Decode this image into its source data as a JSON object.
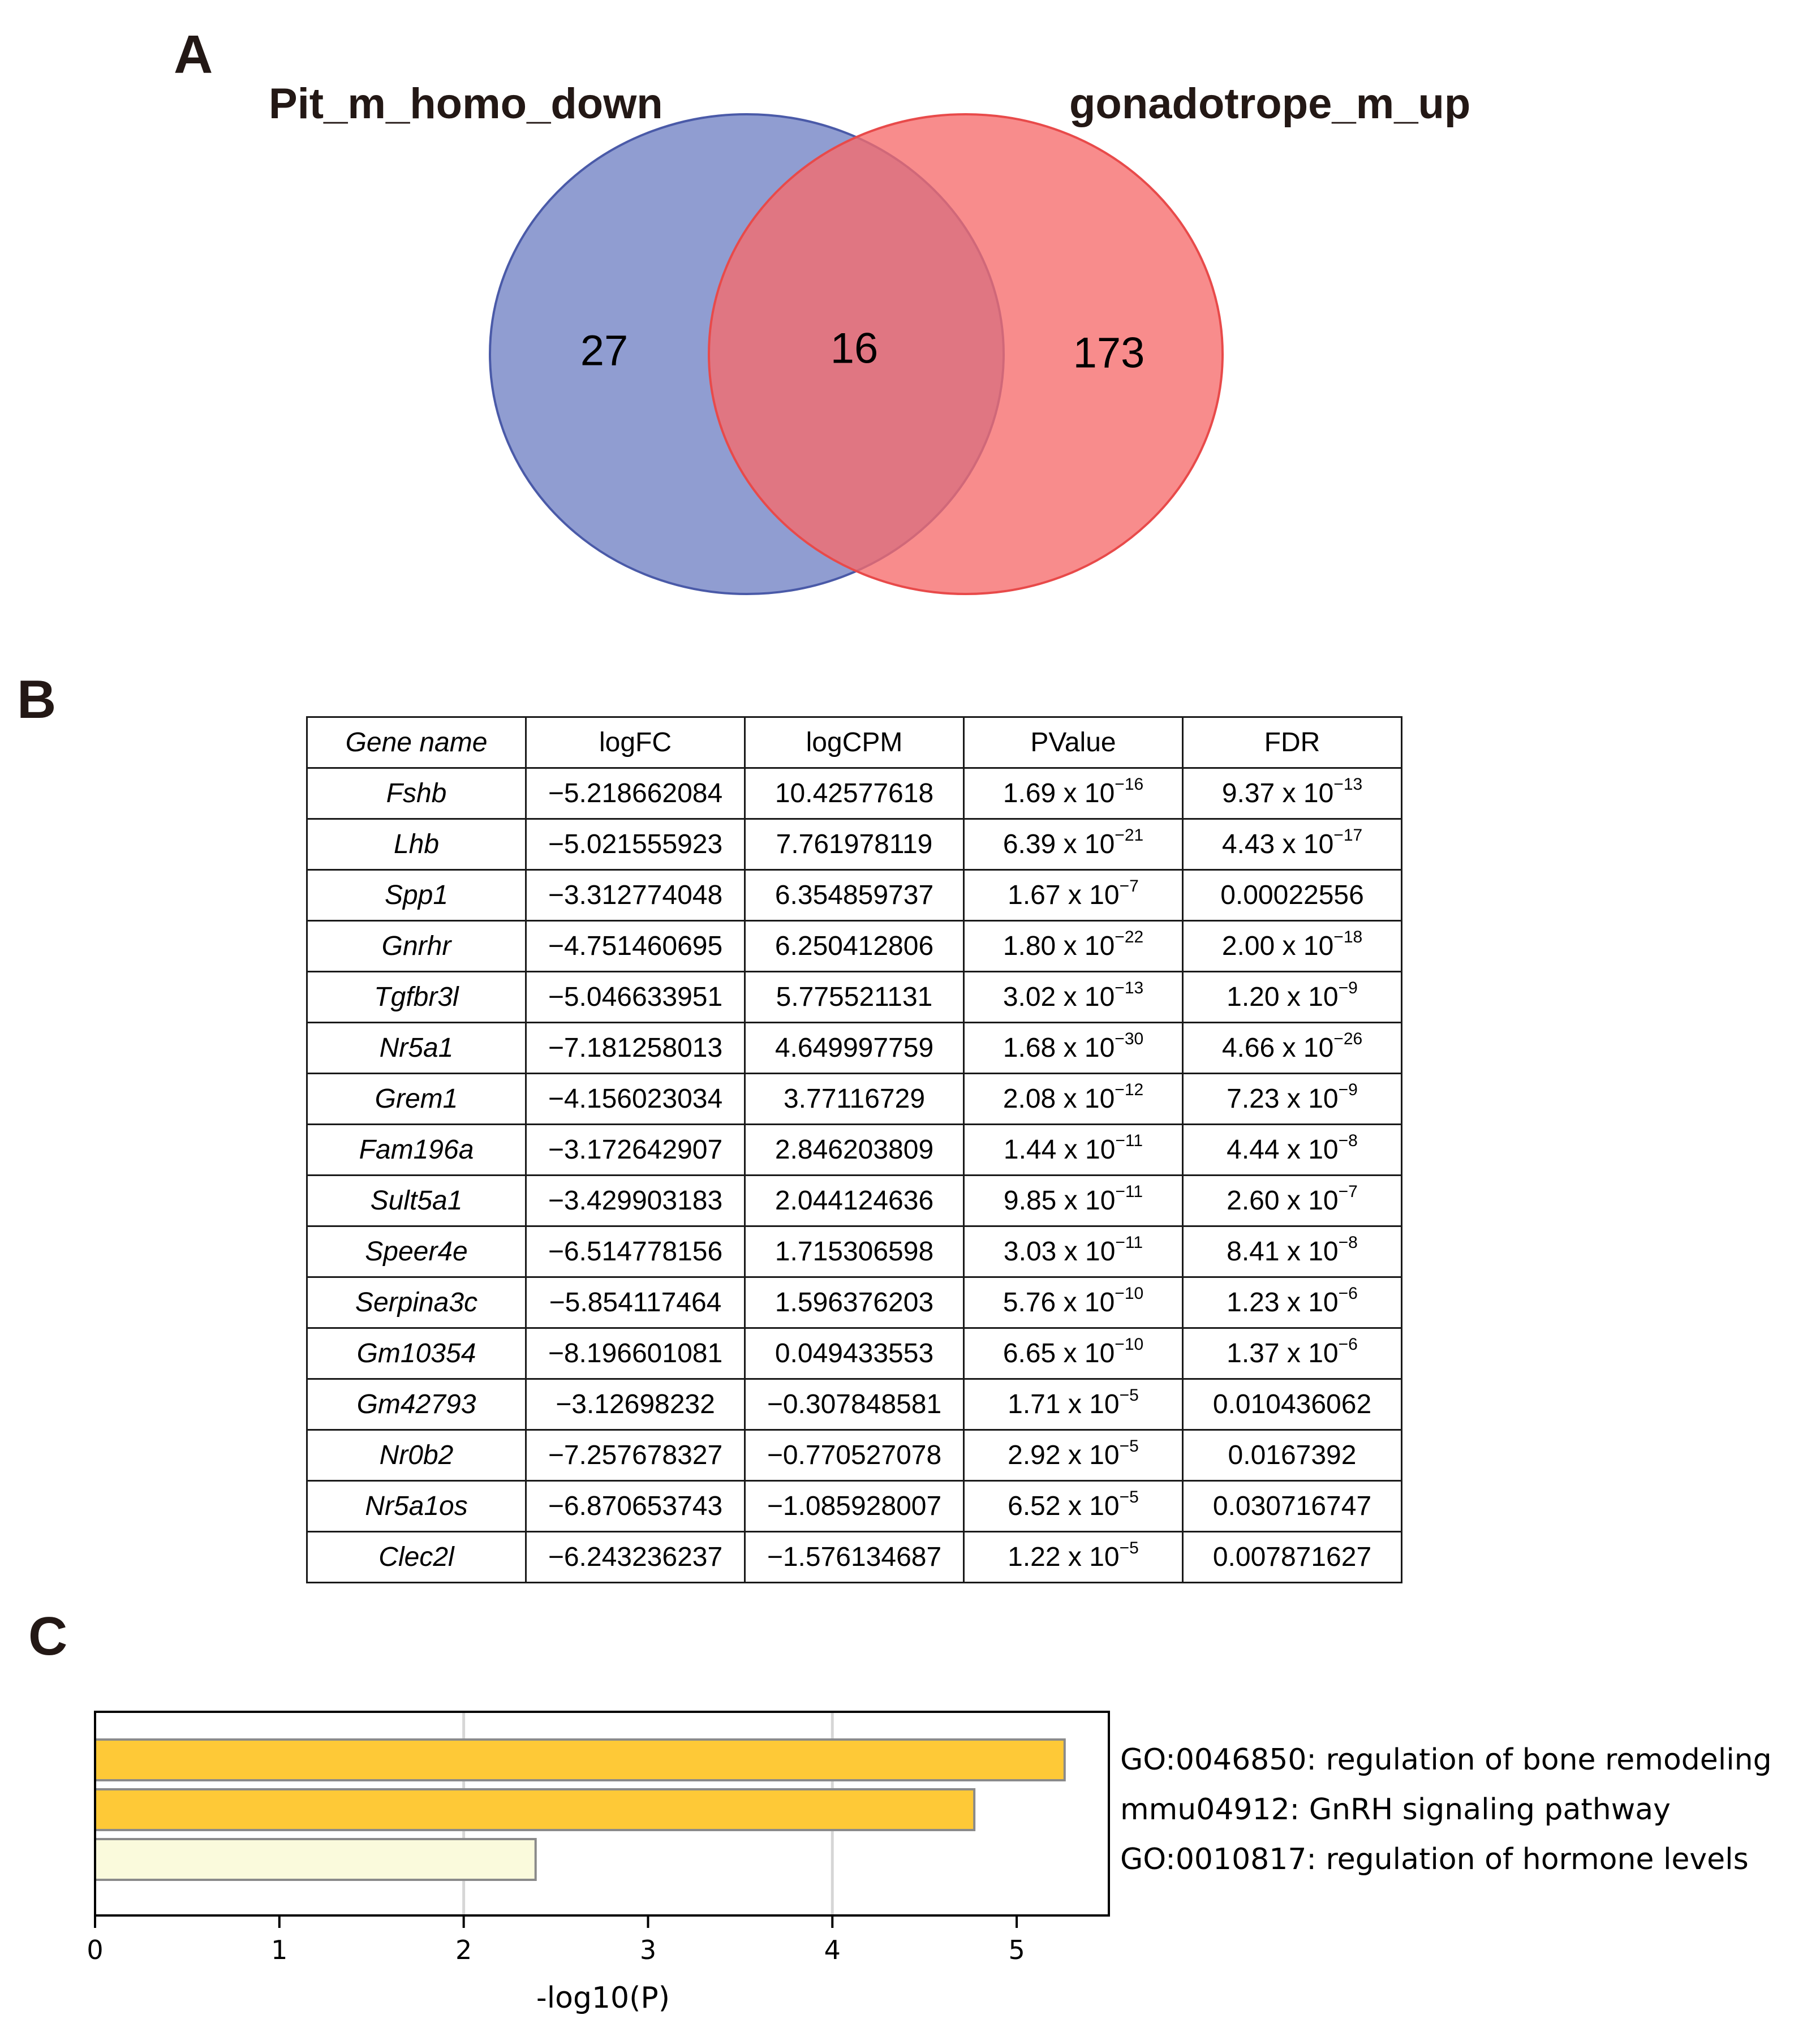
{
  "panels": {
    "a": "A",
    "b": "B",
    "c": "C"
  },
  "venn": {
    "left_title": "Pit_m_homo_down",
    "right_title": "gonadotrope_m_up",
    "left_only": "27",
    "overlap": "16",
    "right_only": "173",
    "left_color": "#7181c4",
    "right_color": "#f66b6b"
  },
  "table": {
    "headers": [
      "Gene name",
      "logFC",
      "logCPM",
      "PValue",
      "FDR"
    ],
    "rows": [
      {
        "gene": "Fshb",
        "logFC": "−5.218662084",
        "logCPM": "10.42577618",
        "p_mant": "1.69",
        "p_exp": "−16",
        "fdr_mant": "9.37",
        "fdr_exp": "−13",
        "fdr_plain": ""
      },
      {
        "gene": "Lhb",
        "logFC": "−5.021555923",
        "logCPM": "7.761978119",
        "p_mant": "6.39",
        "p_exp": "−21",
        "fdr_mant": "4.43",
        "fdr_exp": "−17",
        "fdr_plain": ""
      },
      {
        "gene": "Spp1",
        "logFC": "−3.312774048",
        "logCPM": "6.354859737",
        "p_mant": "1.67",
        "p_exp": "−7",
        "fdr_mant": "",
        "fdr_exp": "",
        "fdr_plain": "0.00022556"
      },
      {
        "gene": "Gnrhr",
        "logFC": "−4.751460695",
        "logCPM": "6.250412806",
        "p_mant": "1.80",
        "p_exp": "−22",
        "fdr_mant": "2.00",
        "fdr_exp": "−18",
        "fdr_plain": ""
      },
      {
        "gene": "Tgfbr3l",
        "logFC": "−5.046633951",
        "logCPM": "5.775521131",
        "p_mant": "3.02",
        "p_exp": "−13",
        "fdr_mant": "1.20",
        "fdr_exp": "−9",
        "fdr_plain": ""
      },
      {
        "gene": "Nr5a1",
        "logFC": "−7.181258013",
        "logCPM": "4.649997759",
        "p_mant": "1.68",
        "p_exp": "−30",
        "fdr_mant": "4.66",
        "fdr_exp": "−26",
        "fdr_plain": ""
      },
      {
        "gene": "Grem1",
        "logFC": "−4.156023034",
        "logCPM": "3.77116729",
        "p_mant": "2.08",
        "p_exp": "−12",
        "fdr_mant": "7.23",
        "fdr_exp": "−9",
        "fdr_plain": ""
      },
      {
        "gene": "Fam196a",
        "logFC": "−3.172642907",
        "logCPM": "2.846203809",
        "p_mant": "1.44",
        "p_exp": "−11",
        "fdr_mant": "4.44",
        "fdr_exp": "−8",
        "fdr_plain": ""
      },
      {
        "gene": "Sult5a1",
        "logFC": "−3.429903183",
        "logCPM": "2.044124636",
        "p_mant": "9.85",
        "p_exp": "−11",
        "fdr_mant": "2.60",
        "fdr_exp": "−7",
        "fdr_plain": ""
      },
      {
        "gene": "Speer4e",
        "logFC": "−6.514778156",
        "logCPM": "1.715306598",
        "p_mant": "3.03",
        "p_exp": "−11",
        "fdr_mant": "8.41",
        "fdr_exp": "−8",
        "fdr_plain": ""
      },
      {
        "gene": "Serpina3c",
        "logFC": "−5.854117464",
        "logCPM": "1.596376203",
        "p_mant": "5.76",
        "p_exp": "−10",
        "fdr_mant": "1.23",
        "fdr_exp": "−6",
        "fdr_plain": ""
      },
      {
        "gene": "Gm10354",
        "logFC": "−8.196601081",
        "logCPM": "0.049433553",
        "p_mant": "6.65",
        "p_exp": "−10",
        "fdr_mant": "1.37",
        "fdr_exp": "−6",
        "fdr_plain": ""
      },
      {
        "gene": "Gm42793",
        "logFC": "−3.12698232",
        "logCPM": "−0.307848581",
        "p_mant": "1.71",
        "p_exp": "−5",
        "fdr_mant": "",
        "fdr_exp": "",
        "fdr_plain": "0.010436062"
      },
      {
        "gene": "Nr0b2",
        "logFC": "−7.257678327",
        "logCPM": "−0.770527078",
        "p_mant": "2.92",
        "p_exp": "−5",
        "fdr_mant": "",
        "fdr_exp": "",
        "fdr_plain": "0.0167392"
      },
      {
        "gene": "Nr5a1os",
        "logFC": "−6.870653743",
        "logCPM": "−1.085928007",
        "p_mant": "6.52",
        "p_exp": "−5",
        "fdr_mant": "",
        "fdr_exp": "",
        "fdr_plain": "0.030716747"
      },
      {
        "gene": "Clec2l",
        "logFC": "−6.243236237",
        "logCPM": "−1.576134687",
        "p_mant": "1.22",
        "p_exp": "−5",
        "fdr_mant": "",
        "fdr_exp": "",
        "fdr_plain": "0.007871627"
      }
    ]
  },
  "chart_data": {
    "type": "bar",
    "orientation": "horizontal",
    "categories": [
      "GO:0046850: regulation of bone remodeling",
      "mmu04912: GnRH signaling pathway",
      "GO:0010817: regulation of hormone levels"
    ],
    "values": [
      5.26,
      4.77,
      2.39
    ],
    "bar_colors": [
      "#fec937",
      "#fec937",
      "#fafadc"
    ],
    "title": "",
    "xlabel": "-log10(P)",
    "ylabel": "",
    "xlim": [
      0,
      5.5
    ],
    "xticks": [
      "0",
      "1",
      "2",
      "3",
      "4",
      "5"
    ],
    "grid": true,
    "legend": "none"
  }
}
